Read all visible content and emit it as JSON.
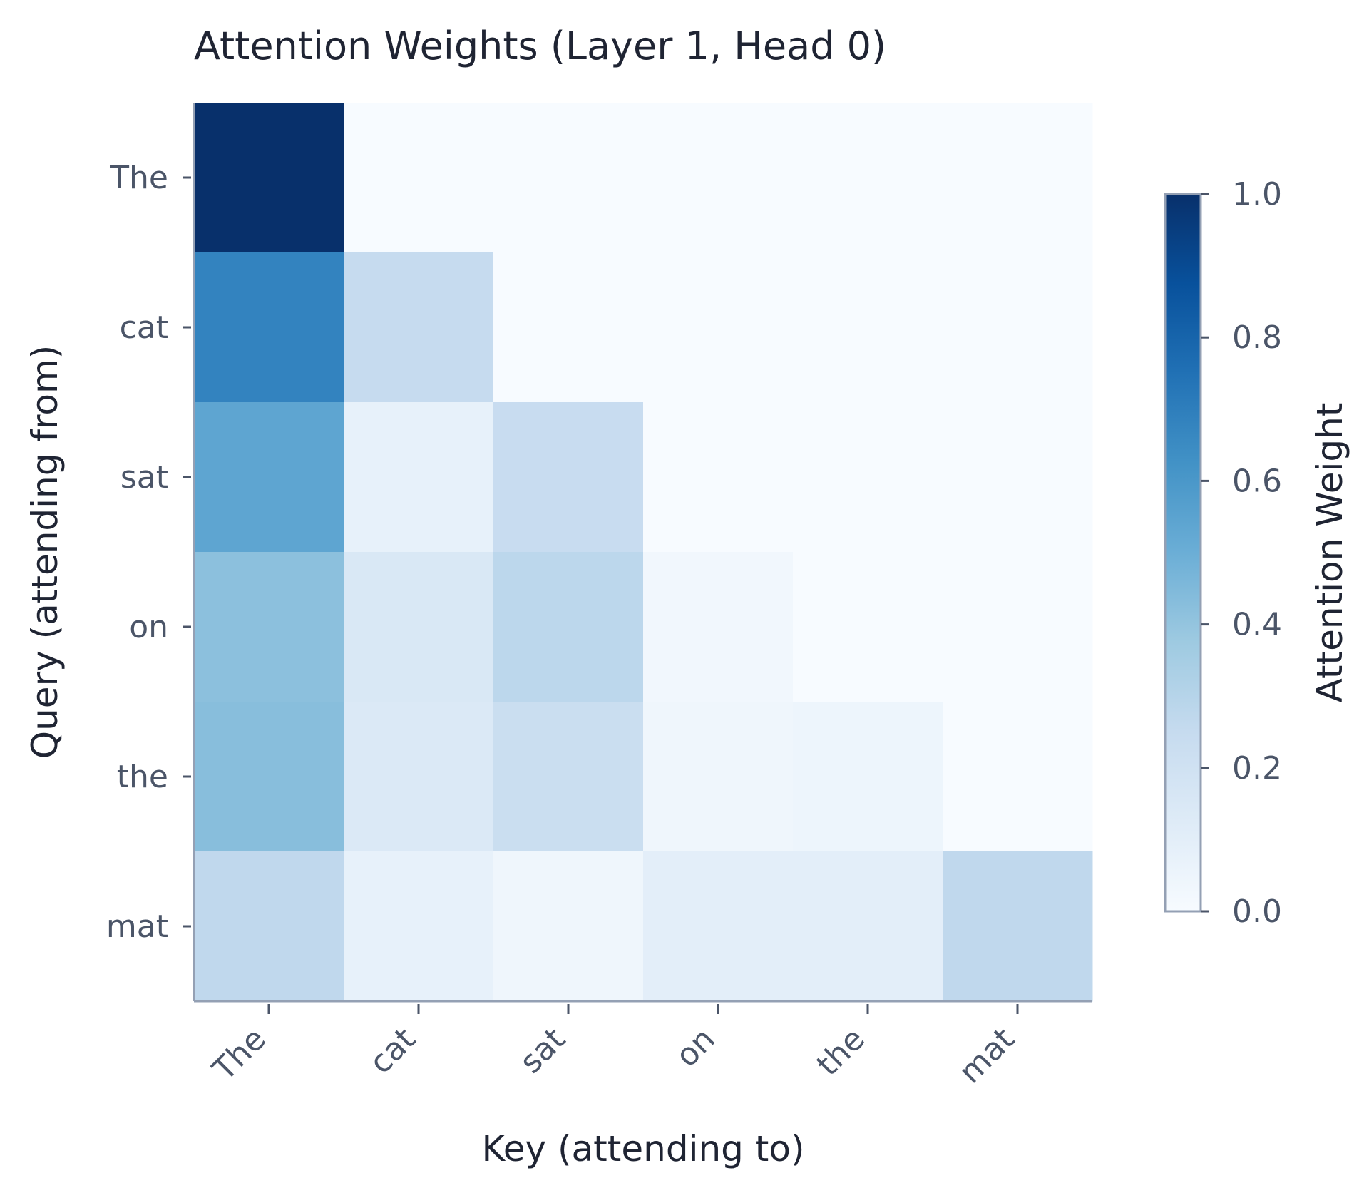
{
  "chart_data": {
    "type": "heatmap",
    "title": "Attention Weights (Layer 1, Head 0)",
    "xlabel": "Key (attending to)",
    "ylabel": "Query (attending from)",
    "x_categories": [
      "The",
      "cat",
      "sat",
      "on",
      "the",
      "mat"
    ],
    "y_categories": [
      "The",
      "cat",
      "sat",
      "on",
      "the",
      "mat"
    ],
    "values": [
      [
        1.0,
        0.0,
        0.0,
        0.0,
        0.0,
        0.0
      ],
      [
        0.68,
        0.25,
        0.0,
        0.0,
        0.0,
        0.0
      ],
      [
        0.54,
        0.08,
        0.24,
        0.0,
        0.0,
        0.0
      ],
      [
        0.42,
        0.15,
        0.28,
        0.03,
        0.0,
        0.0
      ],
      [
        0.43,
        0.14,
        0.23,
        0.04,
        0.05,
        0.0
      ],
      [
        0.27,
        0.08,
        0.04,
        0.1,
        0.1,
        0.27
      ]
    ],
    "colorbar": {
      "label": "Attention Weight",
      "range": [
        0.0,
        1.0
      ],
      "ticks": [
        "0.0",
        "0.2",
        "0.4",
        "0.6",
        "0.8",
        "1.0"
      ],
      "colormap": "Blues",
      "colors": [
        "#f7fbff",
        "#deebf7",
        "#c6dbef",
        "#9ecae1",
        "#6baed6",
        "#4292c6",
        "#2171b5",
        "#08519c",
        "#08306b"
      ]
    },
    "grid": false
  }
}
